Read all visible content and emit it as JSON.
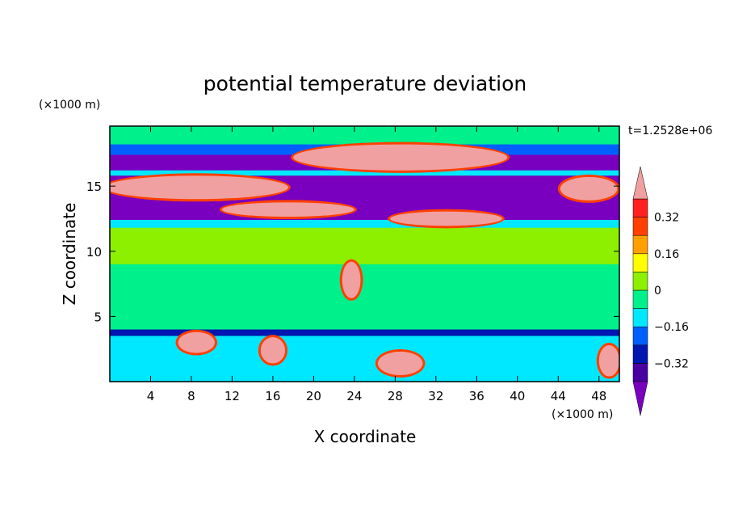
{
  "chart_data": {
    "type": "heatmap",
    "title": "potential temperature deviation",
    "xlabel": "X coordinate",
    "ylabel": "Z coordinate",
    "x_unit": "(×1000 m)",
    "y_unit": "(×1000 m)",
    "time_label": "t=1.2528e+06",
    "xlim": [
      0,
      50
    ],
    "ylim": [
      0,
      19.6
    ],
    "x_ticks": [
      4,
      8,
      12,
      16,
      20,
      24,
      28,
      32,
      36,
      40,
      44,
      48
    ],
    "y_ticks": [
      5,
      10,
      15
    ],
    "colorbar": {
      "levels": [
        -0.4,
        -0.32,
        -0.24,
        -0.16,
        -0.08,
        0,
        0.08,
        0.16,
        0.24,
        0.32,
        0.4
      ],
      "tick_labels": [
        "0.32",
        "0.16",
        "0",
        "−0.16",
        "−0.32"
      ],
      "tick_values": [
        0.32,
        0.16,
        0,
        -0.16,
        -0.32
      ],
      "colors_low_to_high": [
        "#7a00c0",
        "#4a00a0",
        "#0016b0",
        "#0060ff",
        "#00e8ff",
        "#00f08c",
        "#8cf000",
        "#ffff00",
        "#ffa000",
        "#ff4000",
        "#ff2020",
        "#f0a0a0"
      ]
    },
    "bands": [
      {
        "z": [
          18.2,
          19.6
        ],
        "value": 0.0
      },
      {
        "z": [
          17.4,
          18.2
        ],
        "value": -0.2
      },
      {
        "z": [
          16.2,
          17.4
        ],
        "value": -0.4
      },
      {
        "z": [
          15.8,
          16.2
        ],
        "value": -0.12
      },
      {
        "z": [
          12.4,
          15.8
        ],
        "value": -0.4
      },
      {
        "z": [
          11.8,
          12.4
        ],
        "value": -0.12
      },
      {
        "z": [
          9.0,
          11.8
        ],
        "value": 0.04
      },
      {
        "z": [
          4.0,
          9.0
        ],
        "value": 0.0
      },
      {
        "z": [
          3.5,
          4.0
        ],
        "value": -0.3
      },
      {
        "z": [
          0,
          3.5
        ],
        "value": -0.1
      }
    ],
    "warm_blobs": [
      {
        "cx": 8.5,
        "cz": 14.9,
        "rx": 9.0,
        "rz": 0.9,
        "value": 0.42
      },
      {
        "cx": 17.5,
        "cz": 13.2,
        "rx": 6.5,
        "rz": 0.55,
        "value": 0.42
      },
      {
        "cx": 28.5,
        "cz": 17.2,
        "rx": 10.5,
        "rz": 1.0,
        "value": 0.42
      },
      {
        "cx": 33.0,
        "cz": 12.5,
        "rx": 5.5,
        "rz": 0.55,
        "value": 0.42
      },
      {
        "cx": 47.0,
        "cz": 14.8,
        "rx": 2.8,
        "rz": 0.9,
        "value": 0.42
      },
      {
        "cx": 23.7,
        "cz": 7.8,
        "rx": 0.9,
        "rz": 1.4,
        "value": 0.42
      },
      {
        "cx": 8.5,
        "cz": 3.0,
        "rx": 1.8,
        "rz": 0.8,
        "value": 0.42
      },
      {
        "cx": 16.0,
        "cz": 2.4,
        "rx": 1.2,
        "rz": 1.0,
        "value": 0.42
      },
      {
        "cx": 28.5,
        "cz": 1.4,
        "rx": 2.2,
        "rz": 0.9,
        "value": 0.42
      },
      {
        "cx": 49.0,
        "cz": 1.6,
        "rx": 1.0,
        "rz": 1.2,
        "value": 0.42
      }
    ],
    "grid": false
  }
}
